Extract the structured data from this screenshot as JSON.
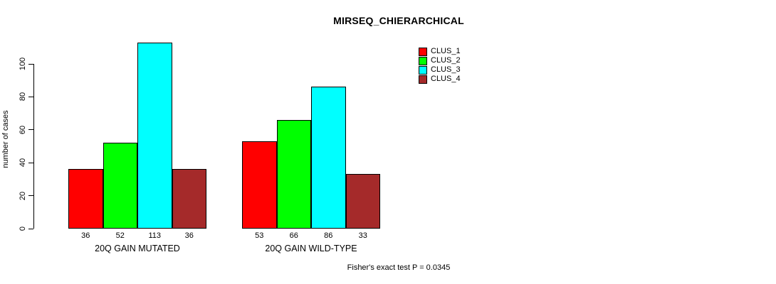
{
  "chart_data": {
    "type": "bar",
    "title": "MIRSEQ_CHIERARCHICAL",
    "ylabel": "number of cases",
    "xlabel": "",
    "categories": [
      "20Q GAIN MUTATED",
      "20Q GAIN WILD-TYPE"
    ],
    "series": [
      {
        "name": "CLUS_1",
        "color": "#FF0000",
        "values": [
          36,
          53
        ]
      },
      {
        "name": "CLUS_2",
        "color": "#00FF00",
        "values": [
          52,
          66
        ]
      },
      {
        "name": "CLUS_3",
        "color": "#00FFFF",
        "values": [
          113,
          86
        ]
      },
      {
        "name": "CLUS_4",
        "color": "#A52A2A",
        "values": [
          36,
          33
        ]
      }
    ],
    "yticks": [
      0,
      20,
      40,
      60,
      80,
      100
    ],
    "ylim": [
      0,
      116
    ],
    "grid": false,
    "legend_position": "top-right",
    "bar_value_labels": true,
    "annotation": "Fisher's exact test P = 0.0345"
  }
}
